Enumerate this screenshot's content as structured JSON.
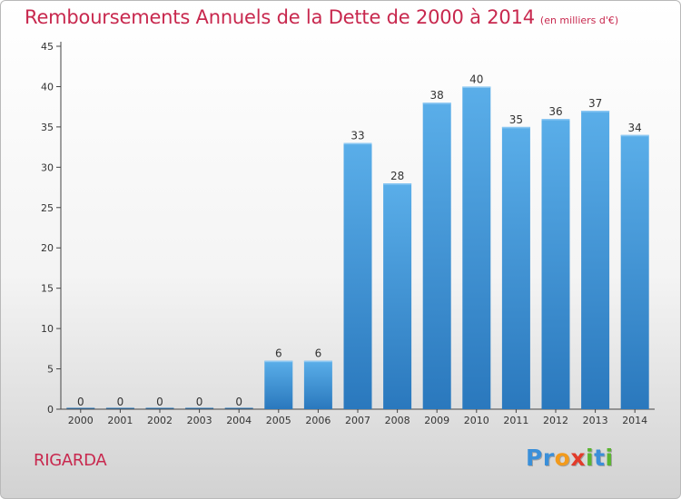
{
  "chart_data": {
    "type": "bar",
    "title": "Remboursements Annuels de la Dette de 2000 à 2014",
    "subtitle": "(en milliers d'€)",
    "categories": [
      "2000",
      "2001",
      "2002",
      "2003",
      "2004",
      "2005",
      "2006",
      "2007",
      "2008",
      "2009",
      "2010",
      "2011",
      "2012",
      "2013",
      "2014"
    ],
    "values": [
      0,
      0,
      0,
      0,
      0,
      6,
      6,
      33,
      28,
      38,
      40,
      35,
      36,
      37,
      34
    ],
    "ylim": [
      0,
      45
    ],
    "yticks": [
      0,
      5,
      10,
      15,
      20,
      25,
      30,
      35,
      40,
      45
    ],
    "grid": false,
    "legend": "none",
    "bar_color": "#4a9fe0",
    "bar_color_dark": "#2a78bd",
    "data_labels": true
  },
  "commune": "RIGARDA",
  "logo": {
    "letters": [
      "P",
      "r",
      "o",
      "x",
      "i",
      "t",
      "i"
    ],
    "colors": [
      "#3a8fd9",
      "#3a8fd9",
      "#f29a1c",
      "#e23b2a",
      "#5bb431",
      "#3a8fd9",
      "#5bb431"
    ]
  },
  "colors": {
    "title": "#c8284e",
    "axis": "#333333"
  }
}
